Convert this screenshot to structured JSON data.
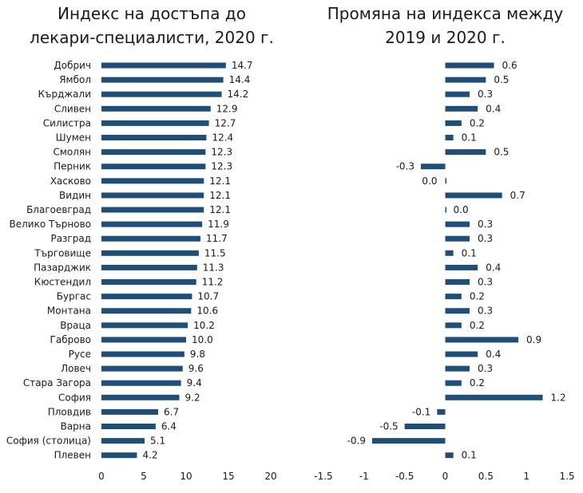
{
  "chart_data": [
    {
      "type": "bar",
      "orientation": "horizontal",
      "title": "Индекс на достъпа до лекари-специалисти, 2020 г.",
      "title_lines": [
        "Индекс на достъпа до",
        "лекари-специалисти, 2020 г."
      ],
      "categories": [
        "Добрич",
        "Ямбол",
        "Кърджали",
        "Сливен",
        "Силистра",
        "Шумен",
        "Смолян",
        "Перник",
        "Хасково",
        "Видин",
        "Благоевград",
        "Велико Търново",
        "Разград",
        "Търговище",
        "Пазарджик",
        "Кюстендил",
        "Бургас",
        "Монтана",
        "Враца",
        "Габрово",
        "Русе",
        "Ловеч",
        "Стара Загора",
        "София",
        "Пловдив",
        "Варна",
        "София (столица)",
        "Плевен"
      ],
      "values": [
        14.7,
        14.4,
        14.2,
        12.9,
        12.7,
        12.4,
        12.3,
        12.3,
        12.1,
        12.1,
        12.1,
        11.9,
        11.7,
        11.5,
        11.3,
        11.2,
        10.7,
        10.6,
        10.2,
        10.0,
        9.8,
        9.6,
        9.4,
        9.2,
        6.7,
        6.4,
        5.1,
        4.2
      ],
      "labels": [
        "14.7",
        "14.4",
        "14.2",
        "12.9",
        "12.7",
        "12.4",
        "12.3",
        "12.3",
        "12.1",
        "12.1",
        "12.1",
        "11.9",
        "11.7",
        "11.5",
        "11.3",
        "11.2",
        "10.7",
        "10.6",
        "10.2",
        "10.0",
        "9.8",
        "9.6",
        "9.4",
        "9.2",
        "6.7",
        "6.4",
        "5.1",
        "4.2"
      ],
      "xlim": [
        0,
        20
      ],
      "xticks": [
        0,
        5,
        10,
        15,
        20
      ],
      "xtick_labels": [
        "0",
        "5",
        "10",
        "15",
        "20"
      ],
      "grid": false,
      "color": "#1f4e79"
    },
    {
      "type": "bar",
      "orientation": "horizontal",
      "title": "Промяна на индекса между 2019 и 2020 г.",
      "title_lines": [
        "Промяна на индекса между",
        "2019 и 2020 г."
      ],
      "values": [
        0.6,
        0.5,
        0.3,
        0.4,
        0.2,
        0.1,
        0.5,
        -0.3,
        0.0,
        0.7,
        0.0,
        0.3,
        0.3,
        0.1,
        0.4,
        0.3,
        0.2,
        0.3,
        0.2,
        0.9,
        0.4,
        0.3,
        0.2,
        1.2,
        -0.1,
        -0.5,
        -0.9,
        0.1
      ],
      "labels": [
        "0.6",
        "0.5",
        "0.3",
        "0.4",
        "0.2",
        "0.1",
        "0.5",
        "-0.3",
        "0.0",
        "0.7",
        "0.0",
        "0.3",
        "0.3",
        "0.1",
        "0.4",
        "0.3",
        "0.2",
        "0.3",
        "0.2",
        "0.9",
        "0.4",
        "0.3",
        "0.2",
        "1.2",
        "-0.1",
        "-0.5",
        "-0.9",
        "0.1"
      ],
      "xlim": [
        -1.5,
        1.5
      ],
      "xticks": [
        -1.5,
        -1,
        -0.5,
        0,
        0.5,
        1,
        1.5
      ],
      "xtick_labels": [
        "-1.5",
        "-1",
        "-0.5",
        "0",
        "0.5",
        "1",
        "1.5"
      ],
      "grid": false,
      "color": "#1f4e79"
    }
  ]
}
